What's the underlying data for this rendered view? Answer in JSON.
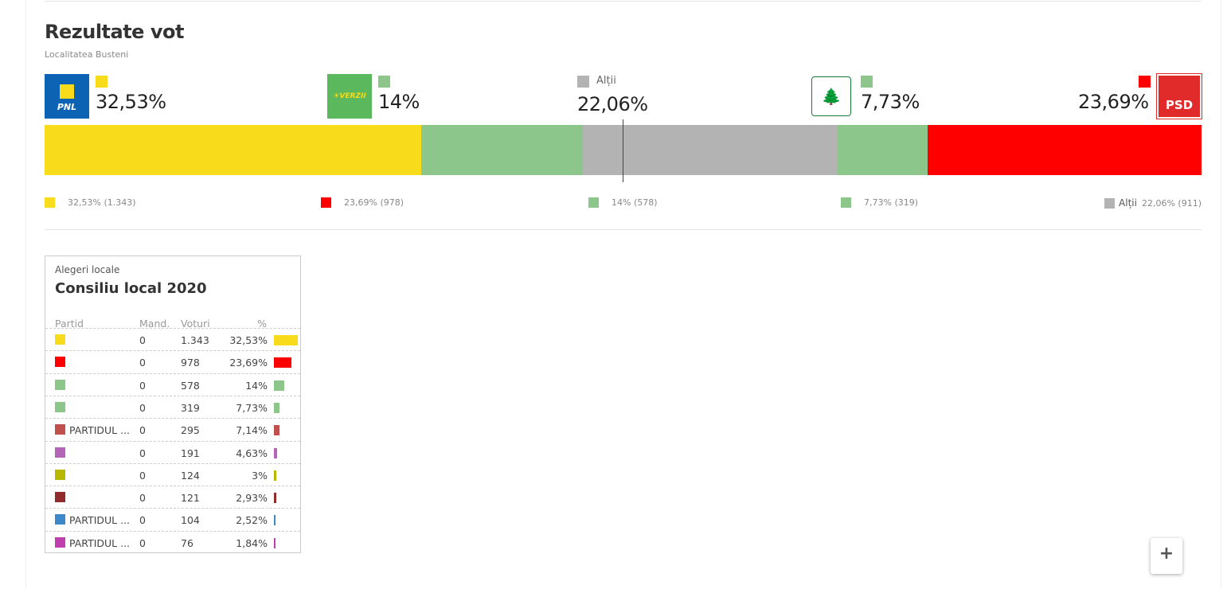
{
  "title": "Rezultate vot",
  "subtitle": "Localitatea Busteni",
  "top_parties": [
    {
      "logo": "PNL",
      "color": "#f8dc1c",
      "pct": "32,53%"
    },
    {
      "logo": "VERZII",
      "color": "#8dc68b",
      "pct": "14%"
    },
    {
      "label": "Alții",
      "color": "#b3b3b3",
      "pct": "22,06%"
    },
    {
      "logo": "PER",
      "color": "#8dc68b",
      "pct": "7,73%"
    },
    {
      "logo": "PSD",
      "color": "#ff0000",
      "pct": "23,69%"
    }
  ],
  "bar_segments": [
    {
      "color": "#f8dc1c",
      "value": 32.53
    },
    {
      "color": "#8dc68b",
      "value": 14
    },
    {
      "color": "#b3b3b3",
      "value": 22.06
    },
    {
      "color": "#8dc68b",
      "value": 7.73
    },
    {
      "color": "#ff0000",
      "value": 23.69
    }
  ],
  "legend": [
    {
      "color": "#f8dc1c",
      "text": "32,53% (1.343)"
    },
    {
      "color": "#ff0000",
      "text": "23,69% (978)"
    },
    {
      "color": "#8dc68b",
      "text": "14% (578)"
    },
    {
      "color": "#8dc68b",
      "text": "7,73% (319)"
    },
    {
      "color": "#b3b3b3",
      "label": "Alții",
      "text": "22,06% (911)"
    }
  ],
  "table": {
    "kicker": "Alegeri locale",
    "title": "Consiliu local 2020",
    "headers": [
      "Partid",
      "Mand.",
      "Voturi",
      "%"
    ],
    "rows": [
      {
        "color": "#f8dc1c",
        "name": "",
        "mand": "0",
        "votes": "1.343",
        "pct": "32,53%",
        "value": 32.53
      },
      {
        "color": "#ff0000",
        "name": "",
        "mand": "0",
        "votes": "978",
        "pct": "23,69%",
        "value": 23.69
      },
      {
        "color": "#8dc68b",
        "name": "",
        "mand": "0",
        "votes": "578",
        "pct": "14%",
        "value": 14
      },
      {
        "color": "#8dc68b",
        "name": "",
        "mand": "0",
        "votes": "319",
        "pct": "7,73%",
        "value": 7.73
      },
      {
        "color": "#c0504d",
        "name": "PARTIDUL ...",
        "mand": "0",
        "votes": "295",
        "pct": "7,14%",
        "value": 7.14
      },
      {
        "color": "#b565b8",
        "name": "",
        "mand": "0",
        "votes": "191",
        "pct": "4,63%",
        "value": 4.63
      },
      {
        "color": "#b8b800",
        "name": "",
        "mand": "0",
        "votes": "124",
        "pct": "3%",
        "value": 3
      },
      {
        "color": "#922b2b",
        "name": "",
        "mand": "0",
        "votes": "121",
        "pct": "2,93%",
        "value": 2.93
      },
      {
        "color": "#3d88c8",
        "name": "PARTIDUL ...",
        "mand": "0",
        "votes": "104",
        "pct": "2,52%",
        "value": 2.52
      },
      {
        "color": "#c03fae",
        "name": "PARTIDUL ...",
        "mand": "0",
        "votes": "76",
        "pct": "1,84%",
        "value": 1.84
      }
    ]
  },
  "zoom_in_label": "+"
}
